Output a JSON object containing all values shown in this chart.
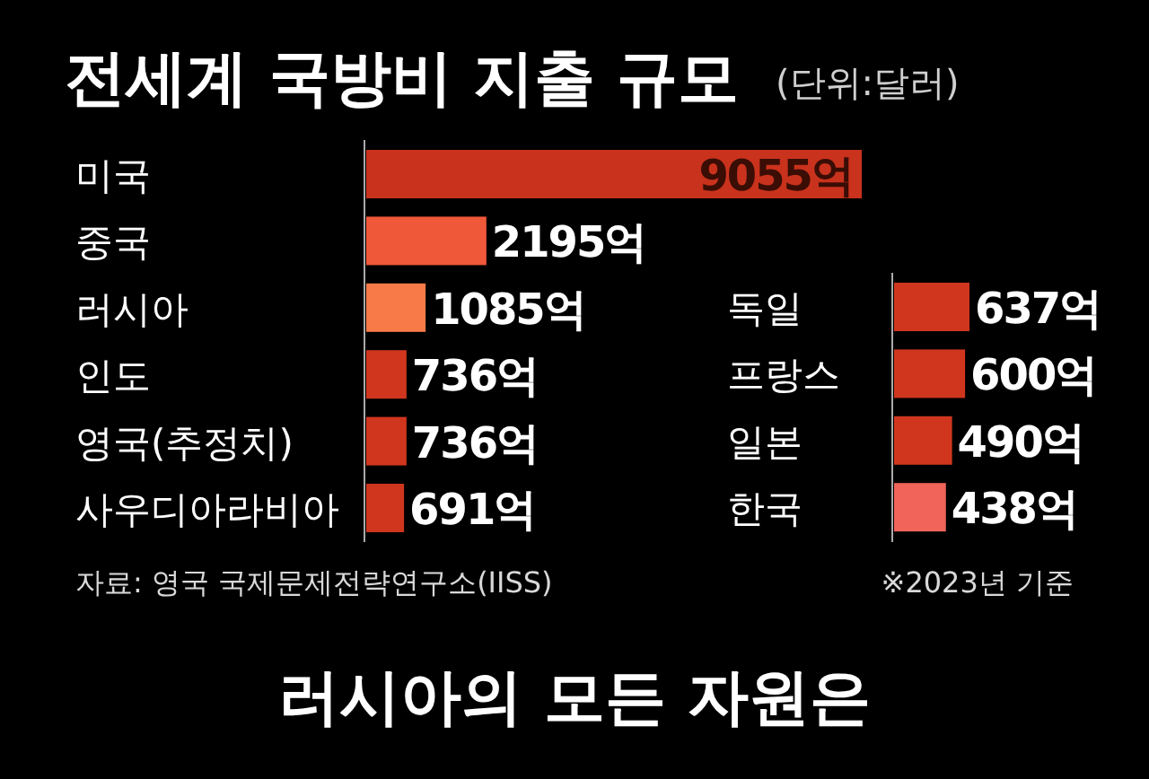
{
  "chart_data": [
    {
      "type": "bar",
      "orientation": "horizontal",
      "title": "전세계 국방비 지출 규모",
      "subtitle": "(단위:달러)",
      "categories": [
        "미국",
        "중국",
        "러시아",
        "인도",
        "영국(추정치)",
        "사우디아라비아"
      ],
      "values": [
        9055,
        2195,
        1085,
        736,
        736,
        691
      ],
      "value_labels": [
        "9055억",
        "2195억",
        "1085억",
        "736억",
        "736억",
        "691억"
      ],
      "colors": [
        "#c9321c",
        "#f0583a",
        "#f77a48",
        "#d0361e",
        "#d0361e",
        "#d0361e"
      ],
      "annotations": [
        "자료: 영국 국제문제전략연구소(IISS)"
      ]
    },
    {
      "type": "bar",
      "orientation": "horizontal",
      "categories": [
        "독일",
        "프랑스",
        "일본",
        "한국"
      ],
      "values": [
        637,
        600,
        490,
        438
      ],
      "value_labels": [
        "637억",
        "600억",
        "490억",
        "438억"
      ],
      "colors": [
        "#d0361e",
        "#d0361e",
        "#d0361e",
        "#f0645a"
      ],
      "annotations": [
        "※2023년 기준",
        "러시아의 모든 자원은"
      ]
    }
  ]
}
